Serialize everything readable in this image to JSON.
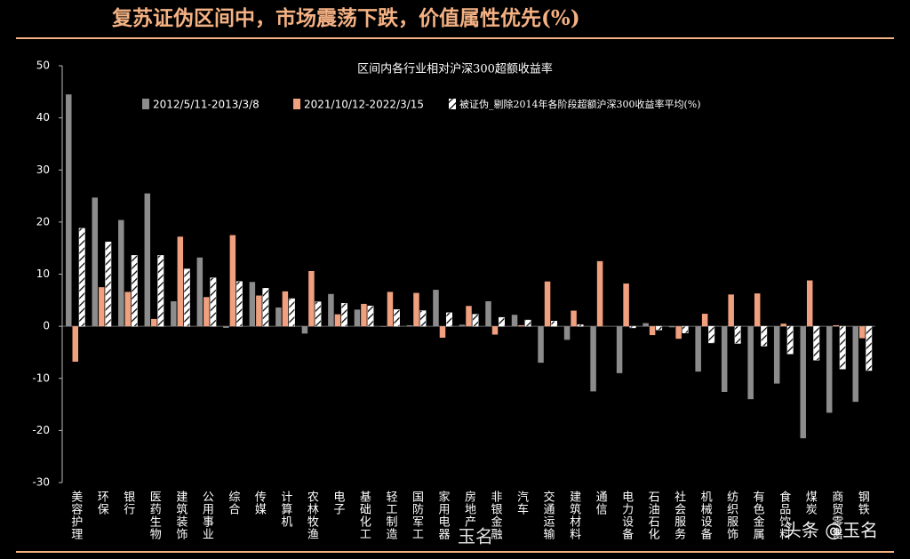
{
  "chart_data": {
    "type": "bar",
    "title": "复苏证伪区间中，市场震荡下跌，价值属性优先(%)",
    "subtitle": "区间内各行业相对沪深300超额收益率",
    "annotations": [
      "玉名",
      "头条 @玉名"
    ],
    "categories": [
      "美容护理",
      "环保",
      "银行",
      "医药生物",
      "建筑装饰",
      "公用事业",
      "综合",
      "传媒",
      "计算机",
      "农林牧渔",
      "电子",
      "基础化工",
      "轻工制造",
      "国防军工",
      "家用电器",
      "房地产",
      "非银金融",
      "汽车",
      "交通运输",
      "建筑材料",
      "通信",
      "电力设备",
      "石油石化",
      "社会服务",
      "机械设备",
      "纺织服饰",
      "有色金属",
      "食品饮料",
      "煤炭",
      "商贸零售",
      "钢铁"
    ],
    "series": [
      {
        "name": "2012/5/11-2013/3/8",
        "color": "#8c8c8c",
        "values": [
          44.5,
          24.7,
          20.4,
          25.5,
          4.8,
          13.2,
          -0.3,
          8.5,
          3.6,
          -1.4,
          6.2,
          3.2,
          -0.1,
          0.2,
          7.0,
          0.3,
          4.8,
          2.2,
          -7.0,
          -2.6,
          -12.5,
          -9.0,
          0.6,
          -0.2,
          -8.7,
          -12.6,
          -14.0,
          -11.0,
          -21.5,
          -16.6,
          -14.5
        ]
      },
      {
        "name": "2021/10/12-2022/3/15",
        "color": "#f0a07e",
        "values": [
          -6.8,
          7.5,
          6.6,
          1.4,
          17.2,
          5.6,
          17.5,
          5.9,
          6.7,
          10.6,
          2.3,
          4.3,
          6.6,
          6.4,
          -2.2,
          3.9,
          -1.6,
          0.2,
          8.6,
          3.0,
          12.5,
          8.2,
          -1.7,
          -2.4,
          2.4,
          6.1,
          6.3,
          0.5,
          8.8,
          0.2,
          -2.3
        ]
      },
      {
        "name": "被证伪_剔除2014年各阶段超额沪深300收益率平均(%)",
        "color": "#ffffff",
        "values": [
          18.8,
          16.2,
          13.6,
          13.6,
          11.0,
          9.3,
          8.6,
          7.3,
          5.3,
          4.7,
          4.4,
          3.9,
          3.2,
          3.0,
          2.6,
          2.3,
          1.7,
          1.2,
          1.0,
          0.3,
          0.0,
          -0.3,
          -0.7,
          -1.3,
          -3.2,
          -3.3,
          -3.8,
          -5.3,
          -6.5,
          -8.2,
          -8.5
        ]
      }
    ],
    "ylim": [
      -30,
      50
    ],
    "yticks": [
      -30,
      -20,
      -10,
      0,
      10,
      20,
      30,
      40,
      50
    ],
    "grid": false
  }
}
